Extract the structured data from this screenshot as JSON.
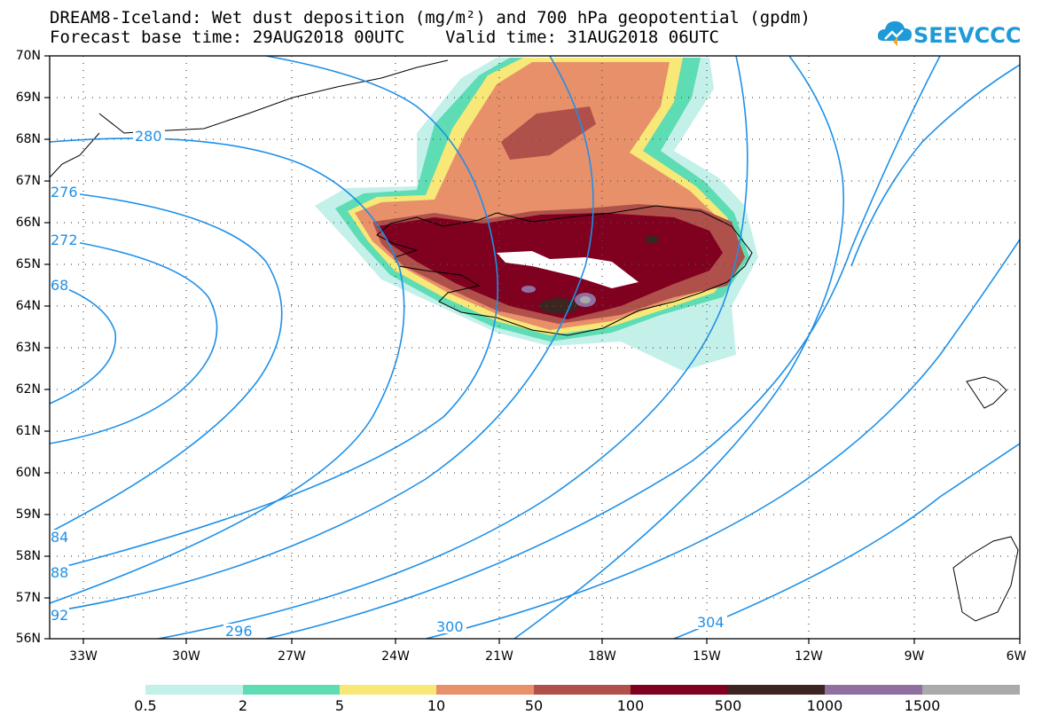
{
  "header": {
    "title_line1": "DREAM8-Iceland: Wet dust deposition (mg/m²) and 700 hPa geopotential (gpdm)",
    "title_line2": "Forecast base time: 29AUG2018 00UTC    Valid time: 31AUG2018 06UTC"
  },
  "logo": {
    "text": "SEEVCCC",
    "icon": "cloud-logo-icon",
    "color": "#1e9ad8"
  },
  "map": {
    "lat_labels": [
      "70N",
      "69N",
      "68N",
      "67N",
      "66N",
      "65N",
      "64N",
      "63N",
      "62N",
      "61N",
      "60N",
      "59N",
      "58N",
      "57N",
      "56N"
    ],
    "lon_labels": [
      "33W",
      "30W",
      "27W",
      "24W",
      "21W",
      "18W",
      "15W",
      "12W",
      "9W",
      "6W"
    ],
    "contour_labels": [
      "280",
      "276",
      "272",
      "68",
      "84",
      "88",
      "92",
      "296",
      "300",
      "304"
    ],
    "contour_color": "#1e90e8"
  },
  "colorbar": {
    "colors": [
      "#c4f0ea",
      "#5edcb4",
      "#f8e878",
      "#e8906a",
      "#b0504a",
      "#800020",
      "#3c2420",
      "#9070a0",
      "#aaaaaa"
    ],
    "tick_labels": [
      "0.5",
      "2",
      "5",
      "10",
      "50",
      "100",
      "500",
      "1000",
      "1500"
    ]
  }
}
